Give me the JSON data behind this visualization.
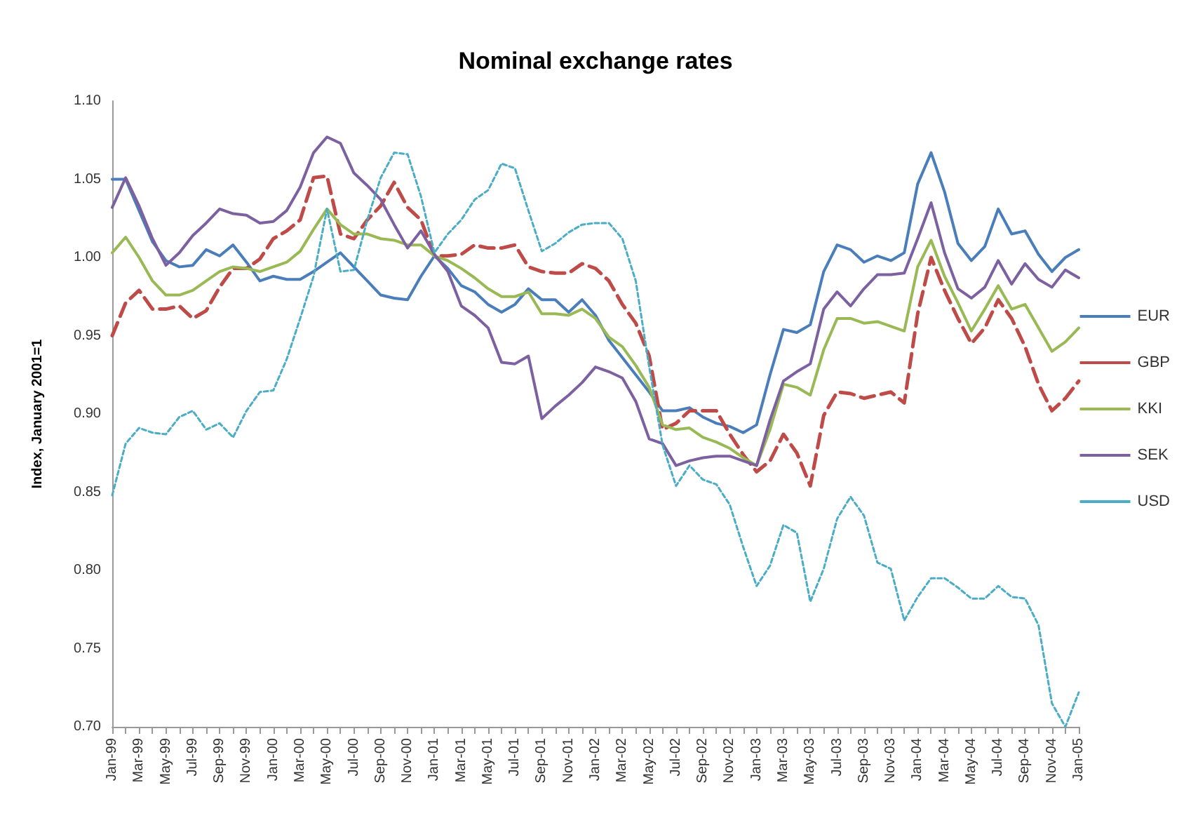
{
  "chart_data": {
    "type": "line",
    "title": "Nominal exchange rates",
    "ylabel": "Index, January 2001=1",
    "categories": [
      "Jan-99",
      null,
      "Mar-99",
      null,
      "May-99",
      null,
      "Jul-99",
      null,
      "Sep-99",
      null,
      "Nov-99",
      null,
      "Jan-00",
      null,
      "Mar-00",
      null,
      "May-00",
      null,
      "Jul-00",
      null,
      "Sep-00",
      null,
      "Nov-00",
      null,
      "Jan-01",
      null,
      "Mar-01",
      null,
      "May-01",
      null,
      "Jul-01",
      null,
      "Sep-01",
      null,
      "Nov-01",
      null,
      "Jan-02",
      null,
      "Mar-02",
      null,
      "May-02",
      null,
      "Jul-02",
      null,
      "Sep-02",
      null,
      "Nov-02",
      null,
      "Jan-03",
      null,
      "Mar-03",
      null,
      "May-03",
      null,
      "Jul-03",
      null,
      "Sep-03",
      null,
      "Nov-03",
      null,
      "Jan-04",
      null,
      "Mar-04",
      null,
      "May-04",
      null,
      "Jul-04",
      null,
      "Sep-04",
      null,
      "Nov-04",
      null,
      "Jan-05"
    ],
    "series": [
      {
        "name": "EUR",
        "color": "#4a7ebb",
        "line_style": "solid",
        "values": [
          1.05,
          1.05,
          1.03,
          1.01,
          0.998,
          0.994,
          0.995,
          1.005,
          1.001,
          1.008,
          0.997,
          0.985,
          0.988,
          0.986,
          0.986,
          0.991,
          0.997,
          1.003,
          0.994,
          0.985,
          0.976,
          0.974,
          0.973,
          0.988,
          1.001,
          0.993,
          0.982,
          0.978,
          0.97,
          0.965,
          0.97,
          0.98,
          0.973,
          0.973,
          0.965,
          0.973,
          0.963,
          0.947,
          0.936,
          0.925,
          0.914,
          0.902,
          0.902,
          0.904,
          0.898,
          0.894,
          0.892,
          0.888,
          0.893,
          0.925,
          0.954,
          0.952,
          0.957,
          0.991,
          1.008,
          1.005,
          0.997,
          1.001,
          0.998,
          1.003,
          1.047,
          1.067,
          1.042,
          1.009,
          0.998,
          1.007,
          1.031,
          1.015,
          1.017,
          1.002,
          0.991,
          1.0,
          1.005
        ]
      },
      {
        "name": "GBP",
        "color": "#be4b48",
        "line_style": "dashed",
        "values": [
          0.95,
          0.971,
          0.979,
          0.967,
          0.967,
          0.969,
          0.961,
          0.966,
          0.981,
          0.993,
          0.993,
          0.999,
          1.012,
          1.017,
          1.024,
          1.051,
          1.052,
          1.015,
          1.012,
          1.024,
          1.033,
          1.048,
          1.032,
          1.024,
          1.001,
          1.001,
          1.002,
          1.008,
          1.006,
          1.006,
          1.008,
          0.994,
          0.991,
          0.99,
          0.99,
          0.996,
          0.993,
          0.985,
          0.97,
          0.958,
          0.937,
          0.89,
          0.894,
          0.902,
          0.902,
          0.902,
          0.887,
          0.874,
          0.863,
          0.87,
          0.887,
          0.875,
          0.854,
          0.899,
          0.914,
          0.913,
          0.91,
          0.912,
          0.914,
          0.907,
          0.964,
          1.0,
          0.979,
          0.961,
          0.945,
          0.955,
          0.973,
          0.961,
          0.943,
          0.919,
          0.902,
          0.91,
          0.921
        ]
      },
      {
        "name": "KKI",
        "color": "#98b954",
        "line_style": "solid",
        "values": [
          1.003,
          1.013,
          1.0,
          0.985,
          0.976,
          0.976,
          0.979,
          0.985,
          0.991,
          0.994,
          0.993,
          0.991,
          0.994,
          0.997,
          1.004,
          1.018,
          1.031,
          1.021,
          1.015,
          1.015,
          1.012,
          1.011,
          1.008,
          1.008,
          1.001,
          0.998,
          0.993,
          0.987,
          0.98,
          0.975,
          0.975,
          0.978,
          0.964,
          0.964,
          0.963,
          0.967,
          0.961,
          0.949,
          0.943,
          0.931,
          0.917,
          0.893,
          0.89,
          0.891,
          0.885,
          0.882,
          0.878,
          0.872,
          0.867,
          0.89,
          0.919,
          0.917,
          0.912,
          0.941,
          0.961,
          0.961,
          0.958,
          0.959,
          0.956,
          0.953,
          0.994,
          1.011,
          0.988,
          0.971,
          0.953,
          0.967,
          0.982,
          0.967,
          0.97,
          0.955,
          0.94,
          0.946,
          0.955
        ]
      },
      {
        "name": "SEK",
        "color": "#7d60a0",
        "line_style": "solid",
        "values": [
          1.032,
          1.051,
          1.033,
          1.012,
          0.995,
          1.003,
          1.014,
          1.022,
          1.031,
          1.028,
          1.027,
          1.022,
          1.023,
          1.03,
          1.045,
          1.067,
          1.077,
          1.073,
          1.054,
          1.046,
          1.037,
          1.021,
          1.006,
          1.017,
          1.002,
          0.991,
          0.969,
          0.963,
          0.955,
          0.933,
          0.932,
          0.937,
          0.897,
          0.905,
          0.912,
          0.92,
          0.93,
          0.927,
          0.923,
          0.908,
          0.884,
          0.881,
          0.867,
          0.87,
          0.872,
          0.873,
          0.873,
          0.87,
          0.867,
          0.896,
          0.921,
          0.927,
          0.932,
          0.967,
          0.978,
          0.969,
          0.98,
          0.989,
          0.989,
          0.99,
          1.012,
          1.035,
          1.003,
          0.98,
          0.974,
          0.981,
          0.998,
          0.983,
          0.996,
          0.986,
          0.981,
          0.992,
          0.987
        ]
      },
      {
        "name": "USD",
        "color": "#4bacc6",
        "line_style": "dotted",
        "values": [
          0.848,
          0.881,
          0.891,
          0.888,
          0.887,
          0.898,
          0.902,
          0.89,
          0.894,
          0.885,
          0.902,
          0.914,
          0.915,
          0.935,
          0.961,
          0.988,
          1.031,
          0.991,
          0.992,
          1.024,
          1.051,
          1.067,
          1.066,
          1.039,
          1.003,
          1.015,
          1.024,
          1.037,
          1.043,
          1.06,
          1.057,
          1.03,
          1.004,
          1.009,
          1.016,
          1.021,
          1.022,
          1.022,
          1.012,
          0.985,
          0.93,
          0.88,
          0.854,
          0.867,
          0.858,
          0.855,
          0.842,
          0.815,
          0.79,
          0.803,
          0.829,
          0.824,
          0.78,
          0.801,
          0.833,
          0.847,
          0.835,
          0.805,
          0.801,
          0.768,
          0.783,
          0.795,
          0.795,
          0.789,
          0.782,
          0.782,
          0.79,
          0.783,
          0.782,
          0.765,
          0.715,
          0.7,
          0.722
        ]
      }
    ],
    "ylim": [
      0.7,
      1.1
    ],
    "yticks": [
      {
        "value": 0.7,
        "label": "0.70"
      },
      {
        "value": 0.75,
        "label": "0.75"
      },
      {
        "value": 0.8,
        "label": "0.80"
      },
      {
        "value": 0.85,
        "label": "0.85"
      },
      {
        "value": 0.9,
        "label": "0.90"
      },
      {
        "value": 0.95,
        "label": "0.95"
      },
      {
        "value": 1.0,
        "label": "1.00"
      },
      {
        "value": 1.05,
        "label": "1.05"
      },
      {
        "value": 1.1,
        "label": "1.10"
      }
    ],
    "grid": false,
    "legend": "right",
    "marker": "none"
  }
}
